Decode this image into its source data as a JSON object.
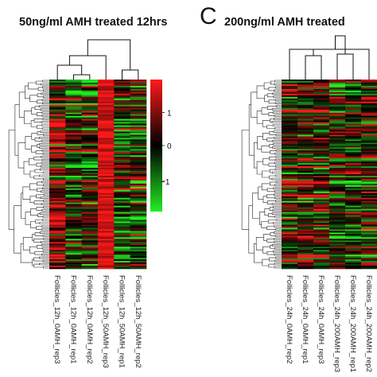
{
  "panels": [
    {
      "title": "50ng/ml AMH treated 12hrs",
      "letter": "",
      "columns": [
        "Follicles_12h_0AMH_rep3",
        "Follicles_12h_0AMH_rep1",
        "Follicles_12h_0AMH_rep2",
        "Follicles_12h_50AMH_rep3",
        "Follicles_12h_50AMH_rep1",
        "Follicles_12h_50AMH_rep2"
      ],
      "legend": {
        "ticks": [
          "1",
          "0",
          "−1"
        ]
      },
      "seed": 11,
      "colBias": [
        1.0,
        -0.6,
        -0.3,
        1.6,
        -0.4,
        -0.2
      ]
    },
    {
      "title": "200ng/ml AMH treated",
      "letter": "C",
      "columns": [
        "Follicles_24h_0AMH_rep2",
        "Follicles_24h_0AMH_rep1",
        "Follicles_24h_0AMH_rep3",
        "Follicles_24h_200AMH_rep3",
        "Follicles_24h_200AMH_rep1",
        "Follicles_24h_200AMH_rep2"
      ],
      "legend": null,
      "seed": 29,
      "colBias": [
        0.2,
        0.4,
        0.3,
        -0.2,
        -0.3,
        0.1
      ]
    }
  ],
  "colors": {
    "high": "#ff1a1a",
    "mid": "#000000",
    "low": "#22ee22"
  }
}
